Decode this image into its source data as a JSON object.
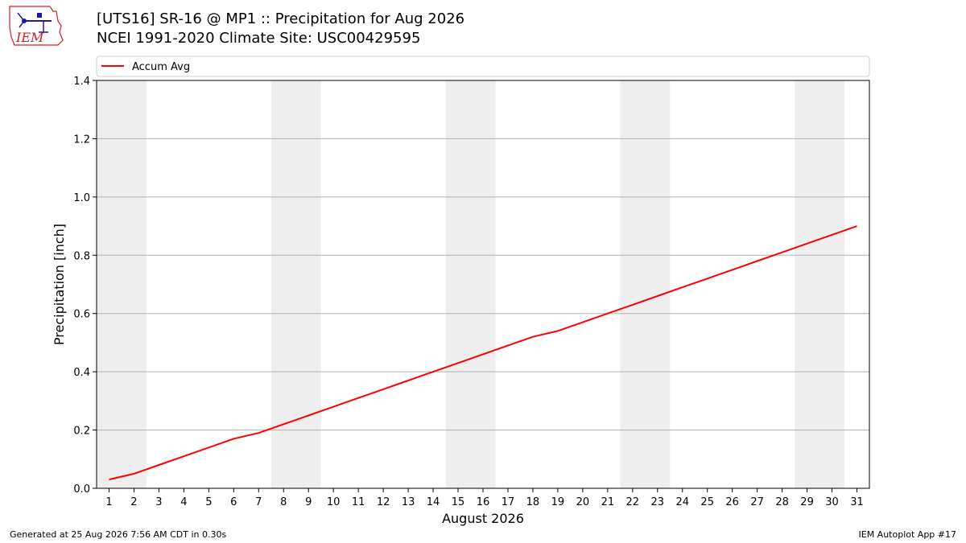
{
  "logo": {
    "icon": "iem-logo-icon",
    "text": "IEM",
    "color": "#cc2222"
  },
  "header": {
    "title_line1": "[UTS16] SR-16 @ MP1  :: Precipitation for Aug 2026",
    "title_line2": "NCEI 1991-2020 Climate Site: USC00429595"
  },
  "footer": {
    "left": "Generated at 25 Aug 2026 7:56 AM CDT in 0.30s",
    "right": "IEM Autoplot App #17"
  },
  "chart_data": {
    "type": "line",
    "xlabel": "August 2026",
    "ylabel": "Precipitation [inch]",
    "xlim": [
      0.5,
      31.5
    ],
    "ylim": [
      0,
      1.4
    ],
    "yticks": [
      0.0,
      0.2,
      0.4,
      0.6,
      0.8,
      1.0,
      1.2,
      1.4
    ],
    "ytick_labels": [
      "0.0",
      "0.2",
      "0.4",
      "0.6",
      "0.8",
      "1.0",
      "1.2",
      "1.4"
    ],
    "xticks": [
      1,
      2,
      3,
      4,
      5,
      6,
      7,
      8,
      9,
      10,
      11,
      12,
      13,
      14,
      15,
      16,
      17,
      18,
      19,
      20,
      21,
      22,
      23,
      24,
      25,
      26,
      27,
      28,
      29,
      30,
      31
    ],
    "xtick_labels": [
      "1",
      "2",
      "3",
      "4",
      "5",
      "6",
      "7",
      "8",
      "9",
      "10",
      "11",
      "12",
      "13",
      "14",
      "15",
      "16",
      "17",
      "18",
      "19",
      "20",
      "21",
      "22",
      "23",
      "24",
      "25",
      "26",
      "27",
      "28",
      "29",
      "30",
      "31"
    ],
    "weekend_shading": [
      [
        0.5,
        2.5
      ],
      [
        7.5,
        9.5
      ],
      [
        14.5,
        16.5
      ],
      [
        21.5,
        23.5
      ],
      [
        28.5,
        30.5
      ]
    ],
    "grid": "y",
    "legend_position": "top",
    "series": [
      {
        "name": "Accum Avg",
        "color": "#ff0000",
        "x": [
          1,
          2,
          3,
          4,
          5,
          6,
          7,
          8,
          9,
          10,
          11,
          12,
          13,
          14,
          15,
          16,
          17,
          18,
          19,
          20,
          21,
          22,
          23,
          24,
          25,
          26,
          27,
          28,
          29,
          30,
          31
        ],
        "y": [
          0.03,
          0.05,
          0.08,
          0.11,
          0.14,
          0.17,
          0.19,
          0.22,
          0.25,
          0.28,
          0.31,
          0.34,
          0.37,
          0.4,
          0.43,
          0.46,
          0.49,
          0.52,
          0.54,
          0.57,
          0.6,
          0.63,
          0.66,
          0.69,
          0.72,
          0.75,
          0.78,
          0.81,
          0.84,
          0.87,
          0.9
        ]
      }
    ]
  }
}
